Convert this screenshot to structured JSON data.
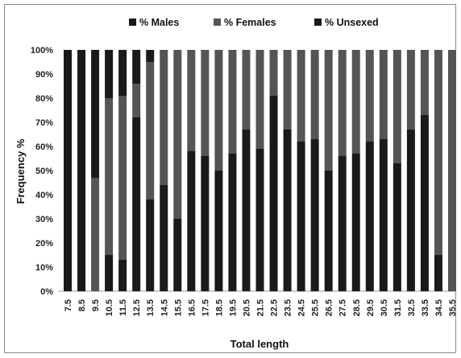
{
  "chart_data": {
    "type": "bar",
    "stacked": true,
    "title": "",
    "xlabel": "Total length",
    "ylabel": "Frequency %",
    "ylim": [
      0,
      100
    ],
    "yticks": [
      "0%",
      "10%",
      "20%",
      "30%",
      "40%",
      "50%",
      "60%",
      "70%",
      "80%",
      "90%",
      "100%"
    ],
    "legend_position": "top",
    "grid": false,
    "categories": [
      "7.5",
      "8.5",
      "9.5",
      "10.5",
      "11.5",
      "12.5",
      "13.5",
      "14.5",
      "15.5",
      "16.5",
      "17.5",
      "18.5",
      "19.5",
      "20.5",
      "21.5",
      "22.5",
      "23.5",
      "24.5",
      "25.5",
      "26.5",
      "27.5",
      "28.5",
      "29.5",
      "30.5",
      "31.5",
      "32.5",
      "33.5",
      "34.5",
      "35.5"
    ],
    "series": [
      {
        "name": "% Males",
        "color": "#1a1a1a",
        "values": [
          100,
          100,
          0,
          15,
          13,
          72,
          38,
          44,
          30,
          58,
          56,
          50,
          57,
          67,
          59,
          81,
          67,
          62,
          63,
          50,
          56,
          57,
          62,
          63,
          53,
          67,
          73,
          15,
          0
        ]
      },
      {
        "name": "% Females",
        "color": "#555555",
        "values": [
          0,
          0,
          47,
          65,
          68,
          14,
          57,
          56,
          70,
          42,
          44,
          50,
          43,
          33,
          41,
          19,
          33,
          38,
          37,
          50,
          44,
          43,
          38,
          37,
          47,
          33,
          27,
          85,
          100
        ]
      },
      {
        "name": "% Unsexed",
        "color": "#1a1a1a",
        "values": [
          0,
          0,
          53,
          20,
          19,
          14,
          5,
          0,
          0,
          0,
          0,
          0,
          0,
          0,
          0,
          0,
          0,
          0,
          0,
          0,
          0,
          0,
          0,
          0,
          0,
          0,
          0,
          0,
          0
        ]
      }
    ]
  }
}
